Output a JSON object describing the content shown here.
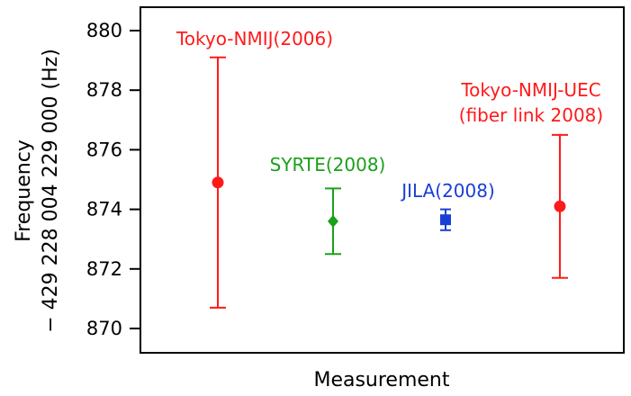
{
  "chart_data": {
    "type": "scatter",
    "title": "",
    "xlabel": "Measurement",
    "ylabel_line1": "Frequency",
    "ylabel_line2": "− 429 228 004 229 000 (Hz)",
    "ylim": [
      869.5,
      881.5
    ],
    "yticks": [
      870,
      872,
      874,
      876,
      878,
      880
    ],
    "ytick_labels": [
      "870",
      "872",
      "874",
      "876",
      "878",
      "880"
    ],
    "grid": false,
    "legend": "none",
    "series": [
      {
        "label_lines": [
          "Tokyo-NMIJ(2006)"
        ],
        "x_index": 1,
        "value": 874.9,
        "err_low": 870.7,
        "err_high": 879.1,
        "color": "#ff1a1a",
        "marker": "circle"
      },
      {
        "label_lines": [
          "SYRTE(2008)"
        ],
        "x_index": 2,
        "value": 873.6,
        "err_low": 872.5,
        "err_high": 874.7,
        "color": "#1aa01a",
        "marker": "diamond"
      },
      {
        "label_lines": [
          "JILA(2008)"
        ],
        "x_index": 3,
        "value": 873.65,
        "err_low": 873.3,
        "err_high": 874.0,
        "color": "#1a3fd6",
        "marker": "square"
      },
      {
        "label_lines": [
          "Tokyo-NMIJ-UEC",
          "(fiber link 2008)"
        ],
        "x_index": 4,
        "value": 874.1,
        "err_low": 871.7,
        "err_high": 876.5,
        "color": "#ff1a1a",
        "marker": "circle"
      }
    ]
  }
}
